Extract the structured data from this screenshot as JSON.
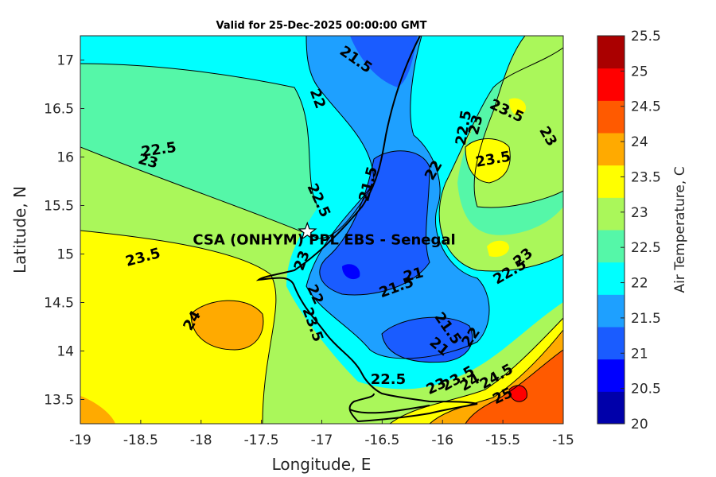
{
  "title": "Valid for 25-Dec-2025 00:00:00 GMT",
  "map": {
    "xlabel": "Longitude, E",
    "ylabel": "Latitude, N",
    "xlim": [
      -19,
      -15
    ],
    "ylim": [
      13.25,
      17.25
    ],
    "xticks": [
      "-19",
      "-18.5",
      "-18",
      "-17.5",
      "-17",
      "-16.5",
      "-16",
      "-15.5",
      "-15"
    ],
    "yticks": [
      "13.5",
      "14",
      "14.5",
      "15",
      "15.5",
      "16",
      "16.5",
      "17"
    ],
    "site_label": "CSA (ONHYM) PPL EBS  - Senegal",
    "site_marker": "star-icon",
    "contour_labels": [
      {
        "text": "22.5",
        "lon": -18.35,
        "lat": 16.07,
        "rot": -8
      },
      {
        "text": "23",
        "lon": -18.44,
        "lat": 15.95,
        "rot": 15
      },
      {
        "text": "23.5",
        "lon": -18.48,
        "lat": 14.96,
        "rot": -15
      },
      {
        "text": "24",
        "lon": -18.07,
        "lat": 14.31,
        "rot": -60
      },
      {
        "text": "22",
        "lon": -17.04,
        "lat": 16.6,
        "rot": 70
      },
      {
        "text": "22.5",
        "lon": -17.03,
        "lat": 15.55,
        "rot": 65
      },
      {
        "text": "23",
        "lon": -17.16,
        "lat": 14.93,
        "rot": -70
      },
      {
        "text": "22",
        "lon": -17.06,
        "lat": 14.58,
        "rot": 65
      },
      {
        "text": "23.5",
        "lon": -17.08,
        "lat": 14.27,
        "rot": 70
      },
      {
        "text": "21.5",
        "lon": -16.72,
        "lat": 17.0,
        "rot": 35
      },
      {
        "text": "21.5",
        "lon": -16.61,
        "lat": 15.72,
        "rot": -75
      },
      {
        "text": "21",
        "lon": -16.24,
        "lat": 14.78,
        "rot": -15
      },
      {
        "text": "21.5",
        "lon": -16.38,
        "lat": 14.65,
        "rot": -20
      },
      {
        "text": "22",
        "lon": -16.07,
        "lat": 15.86,
        "rot": -60
      },
      {
        "text": "22.5",
        "lon": -15.82,
        "lat": 16.3,
        "rot": -80
      },
      {
        "text": "23",
        "lon": -15.72,
        "lat": 16.33,
        "rot": -75
      },
      {
        "text": "23.5",
        "lon": -15.47,
        "lat": 16.47,
        "rot": 25
      },
      {
        "text": "23.5",
        "lon": -15.58,
        "lat": 15.97,
        "rot": -10
      },
      {
        "text": "23",
        "lon": -15.13,
        "lat": 16.21,
        "rot": 60
      },
      {
        "text": "23",
        "lon": -15.33,
        "lat": 14.96,
        "rot": -40
      },
      {
        "text": "22.5",
        "lon": -15.44,
        "lat": 14.81,
        "rot": -30
      },
      {
        "text": "21.5",
        "lon": -15.96,
        "lat": 14.23,
        "rot": 55
      },
      {
        "text": "21",
        "lon": -16.03,
        "lat": 14.04,
        "rot": 40
      },
      {
        "text": "22",
        "lon": -15.76,
        "lat": 14.14,
        "rot": -55
      },
      {
        "text": "22.5",
        "lon": -16.45,
        "lat": 13.7,
        "rot": 0
      },
      {
        "text": "23",
        "lon": -16.05,
        "lat": 13.63,
        "rot": -25
      },
      {
        "text": "23.5",
        "lon": -15.87,
        "lat": 13.71,
        "rot": -30
      },
      {
        "text": "24",
        "lon": -15.77,
        "lat": 13.67,
        "rot": -30
      },
      {
        "text": "24.5",
        "lon": -15.55,
        "lat": 13.73,
        "rot": -30
      },
      {
        "text": "25",
        "lon": -15.5,
        "lat": 13.53,
        "rot": -25
      }
    ]
  },
  "colorbar": {
    "label": "Air Temperature, C",
    "levels": [
      "20",
      "20.5",
      "21",
      "21.5",
      "22",
      "22.5",
      "23",
      "23.5",
      "24",
      "24.5",
      "25",
      "25.5"
    ],
    "colors": [
      "#0000aa",
      "#0000ff",
      "#1a5cff",
      "#1ea0ff",
      "#00ffff",
      "#55f7a8",
      "#aaf75a",
      "#ffff00",
      "#ffaa00",
      "#ff5a00",
      "#ff0000",
      "#aa0000"
    ]
  },
  "colors": {
    "axis": "#262626",
    "field_base": "#aaf75a"
  }
}
